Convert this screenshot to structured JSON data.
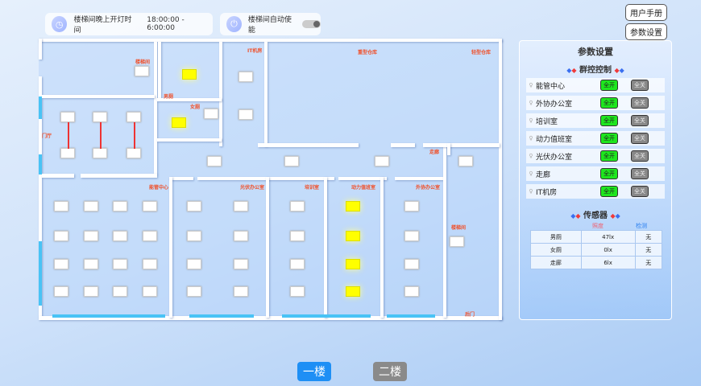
{
  "header": {
    "stair_time_label": "楼梯间晚上开灯时间",
    "stair_time_value": "18:00:00 -  6:00:00",
    "auto_label": "楼梯间自动使能",
    "auto_enabled": false,
    "manual_button": "用户手册",
    "settings_button": "参数设置"
  },
  "plan": {
    "rooms": {
      "stair1": "楼梯间",
      "men": "男厕",
      "women": "女厕",
      "it": "IT机房",
      "heavy": "重型仓库",
      "light": "轻型仓库",
      "lobby": "门厅",
      "energy": "能管中心",
      "pv": "光伏办公室",
      "training": "培训室",
      "duty": "动力值班室",
      "outsource": "外协办公室",
      "corridor": "走廊",
      "stair2": "楼梯间",
      "backdoor": "后门"
    },
    "lights_on": {
      "men": true,
      "women": true,
      "duty": true,
      "others": false
    }
  },
  "panel": {
    "title": "参数设置",
    "group_title": "群控控制",
    "groups": [
      {
        "name": "能管中心",
        "on": "全开",
        "off": "全关"
      },
      {
        "name": "外协办公室",
        "on": "全开",
        "off": "全关"
      },
      {
        "name": "培训室",
        "on": "全开",
        "off": "全关"
      },
      {
        "name": "动力值班室",
        "on": "全开",
        "off": "全关"
      },
      {
        "name": "光伏办公室",
        "on": "全开",
        "off": "全关"
      },
      {
        "name": "走廊",
        "on": "全开",
        "off": "全关"
      },
      {
        "name": "IT机房",
        "on": "全开",
        "off": "全关"
      }
    ],
    "sensor_title": "传感器",
    "sensor_headers": [
      "照度",
      "检测"
    ],
    "sensors": [
      {
        "name": "男厕",
        "lux": "47lx",
        "detect": "无"
      },
      {
        "name": "女厕",
        "lux": "0lx",
        "detect": "无"
      },
      {
        "name": "走廊",
        "lux": "6lx",
        "detect": "无"
      }
    ]
  },
  "floors": {
    "first": "一楼",
    "second": "二楼",
    "active": "一楼"
  },
  "colors": {
    "accent": "#1e8ff5",
    "label": "#f0502a",
    "on": "#1ee61e",
    "off": "#888888",
    "light_on": "#ffff00"
  }
}
